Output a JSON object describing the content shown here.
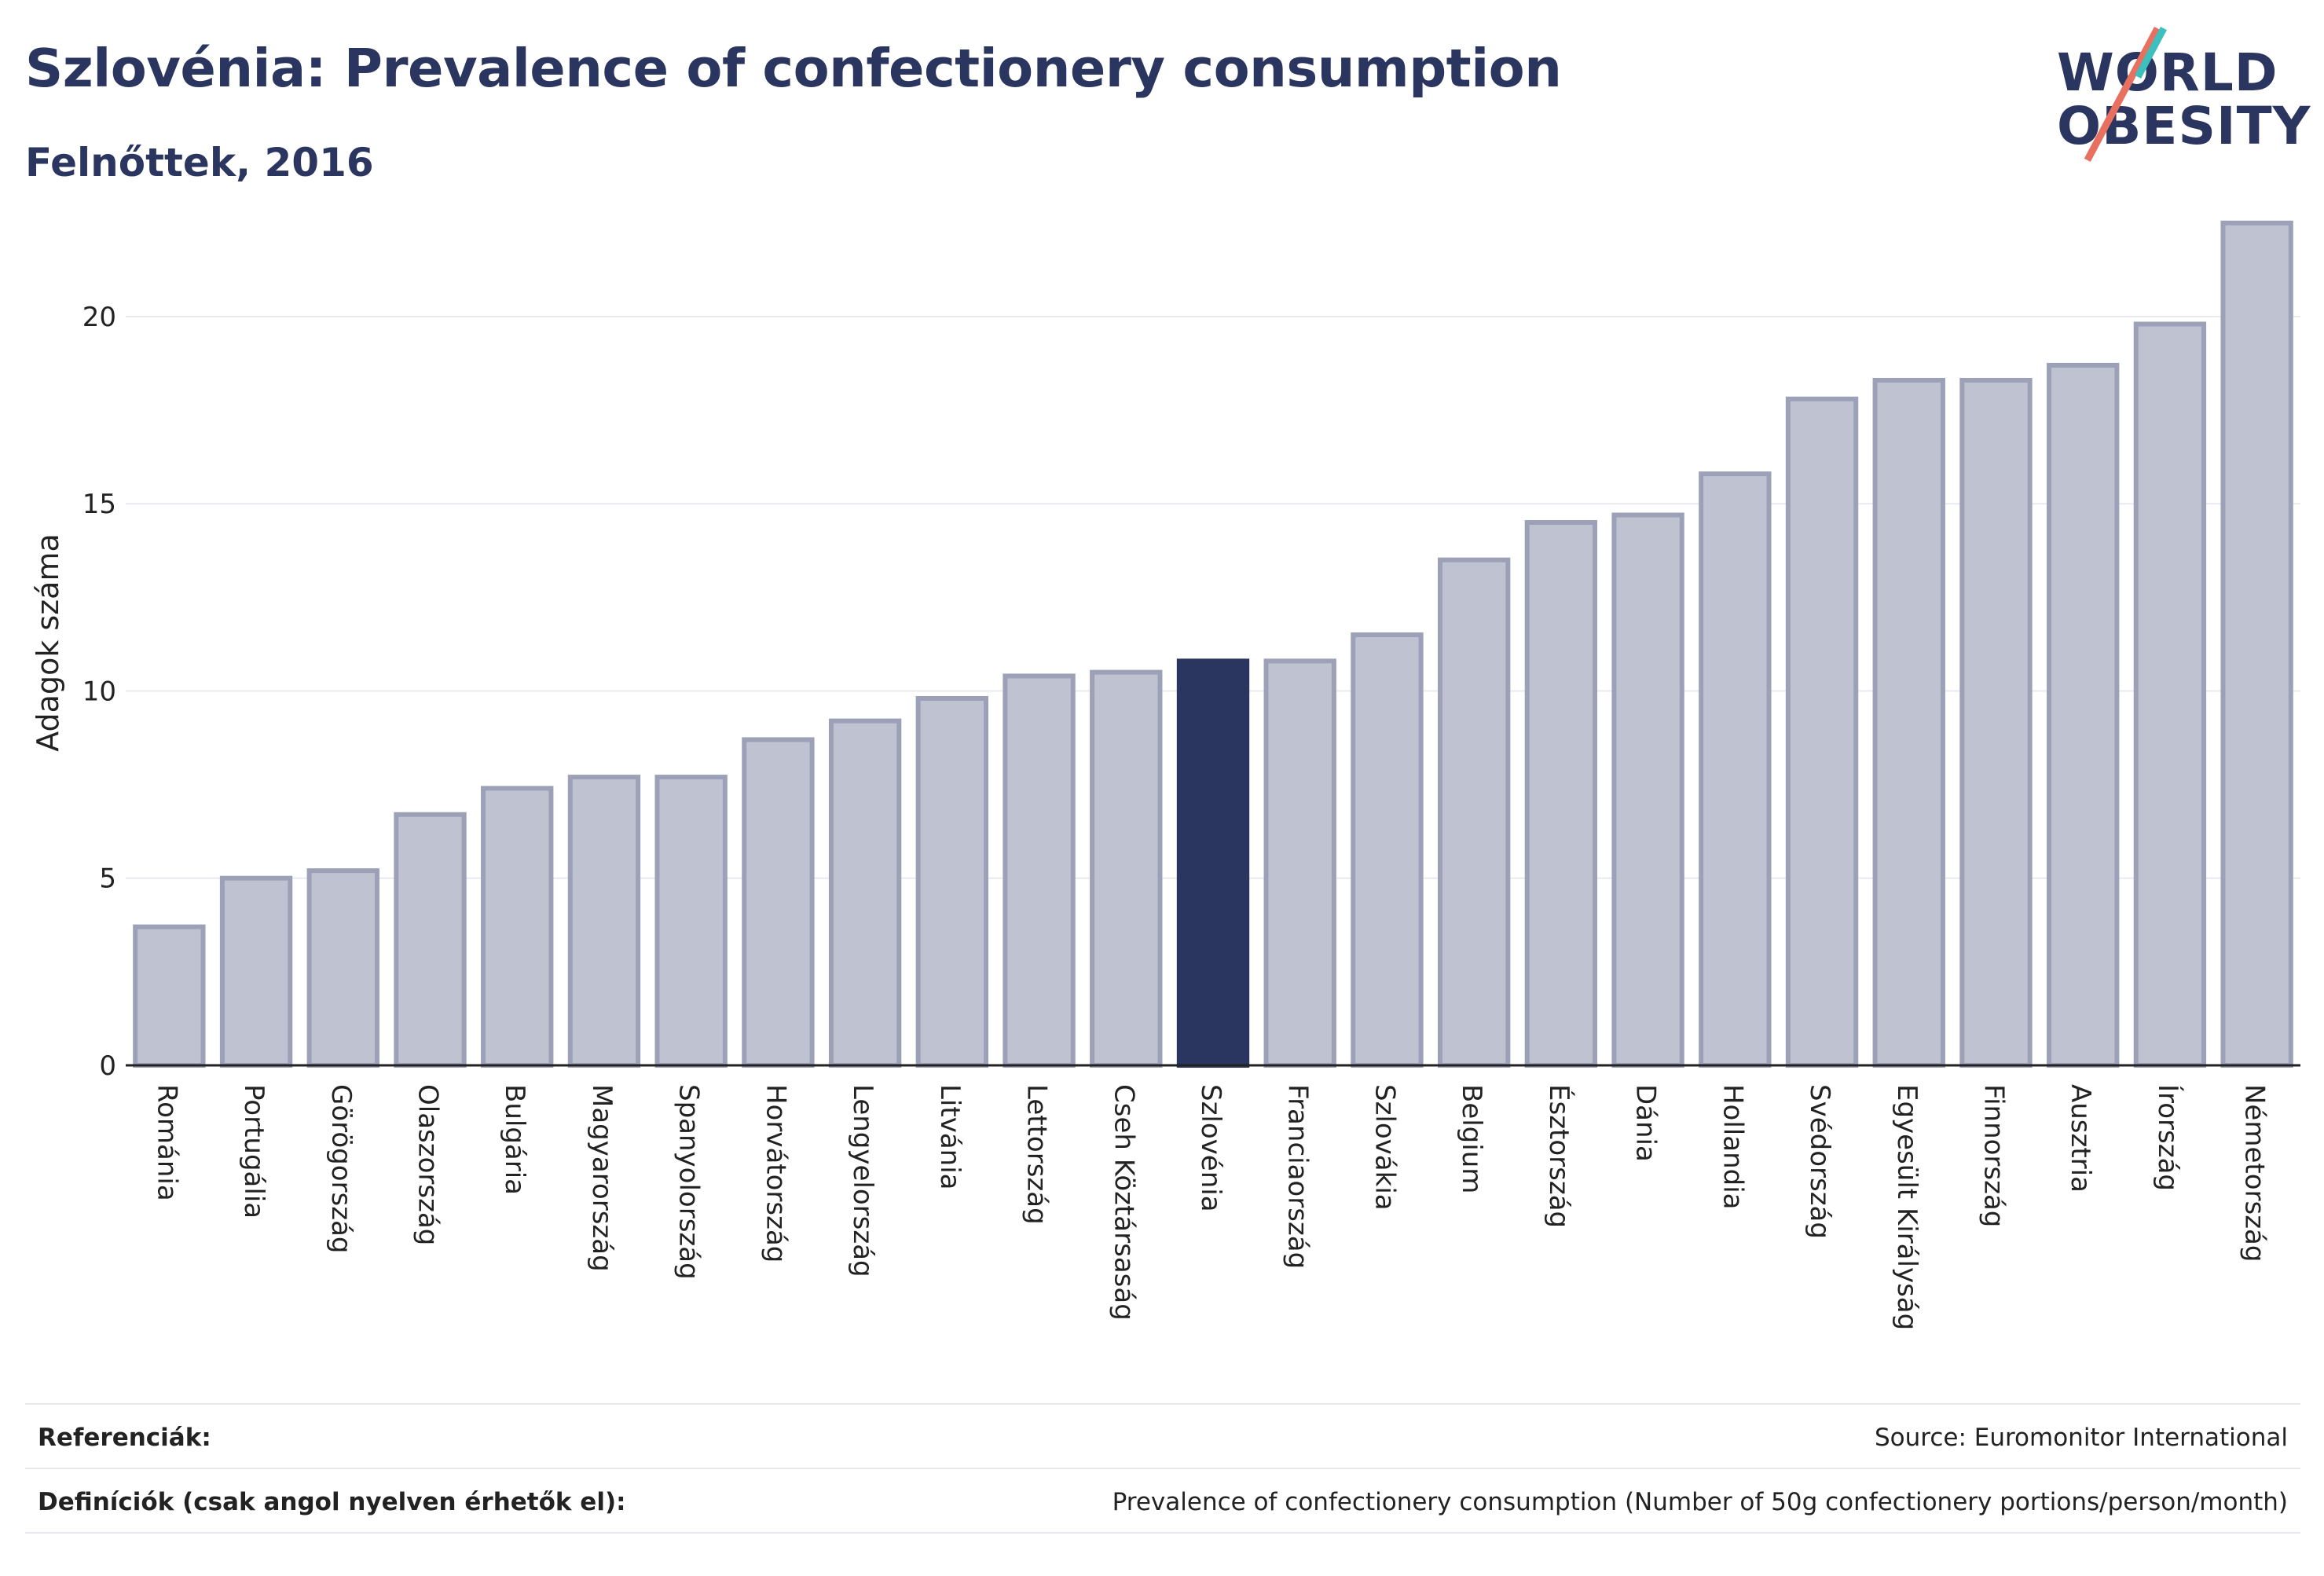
{
  "header": {
    "title": "Szlovénia: Prevalence of confectionery consumption",
    "subtitle": "Felnőttek, 2016"
  },
  "logo": {
    "line1": "WORLD",
    "line2": "OBESITY"
  },
  "colors": {
    "highlight": "#2a3560",
    "bar": "#bfc3d1",
    "bar_border": "#9ca1b8",
    "grid": "#e9eaef",
    "accent_coral": "#e8705f",
    "accent_teal": "#3cbfbd"
  },
  "chart_data": {
    "type": "bar",
    "title": "Szlovénia: Prevalence of confectionery consumption",
    "subtitle": "Felnőttek, 2016",
    "ylabel": "Adagok száma",
    "xlabel": "",
    "ylim": [
      0,
      23
    ],
    "yticks": [
      0,
      5,
      10,
      15,
      20
    ],
    "grid": true,
    "highlight": "Szlovénia",
    "categories": [
      "Románia",
      "Portugália",
      "Görögország",
      "Olaszország",
      "Bulgária",
      "Magyarország",
      "Spanyolország",
      "Horvátország",
      "Lengyelország",
      "Litvánia",
      "Lettország",
      "Cseh Köztársaság",
      "Szlovénia",
      "Franciaország",
      "Szlovákia",
      "Belgium",
      "Észtország",
      "Dánia",
      "Hollandia",
      "Svédország",
      "Egyesült Királyság",
      "Finnország",
      "Ausztria",
      "Írország",
      "Németország"
    ],
    "values": [
      3.7,
      5.0,
      5.2,
      6.7,
      7.4,
      7.7,
      7.7,
      8.7,
      9.2,
      9.8,
      10.4,
      10.5,
      10.8,
      10.8,
      11.5,
      13.5,
      14.5,
      14.7,
      15.8,
      17.8,
      18.3,
      18.3,
      18.7,
      19.8,
      22.5
    ]
  },
  "footer": {
    "references_label": "Referenciák:",
    "references_value": "Source: Euromonitor International",
    "definitions_label": "Definíciók (csak angol nyelven érhetők el):",
    "definitions_value": "Prevalence of confectionery consumption (Number of 50g confectionery portions/person/month)"
  }
}
